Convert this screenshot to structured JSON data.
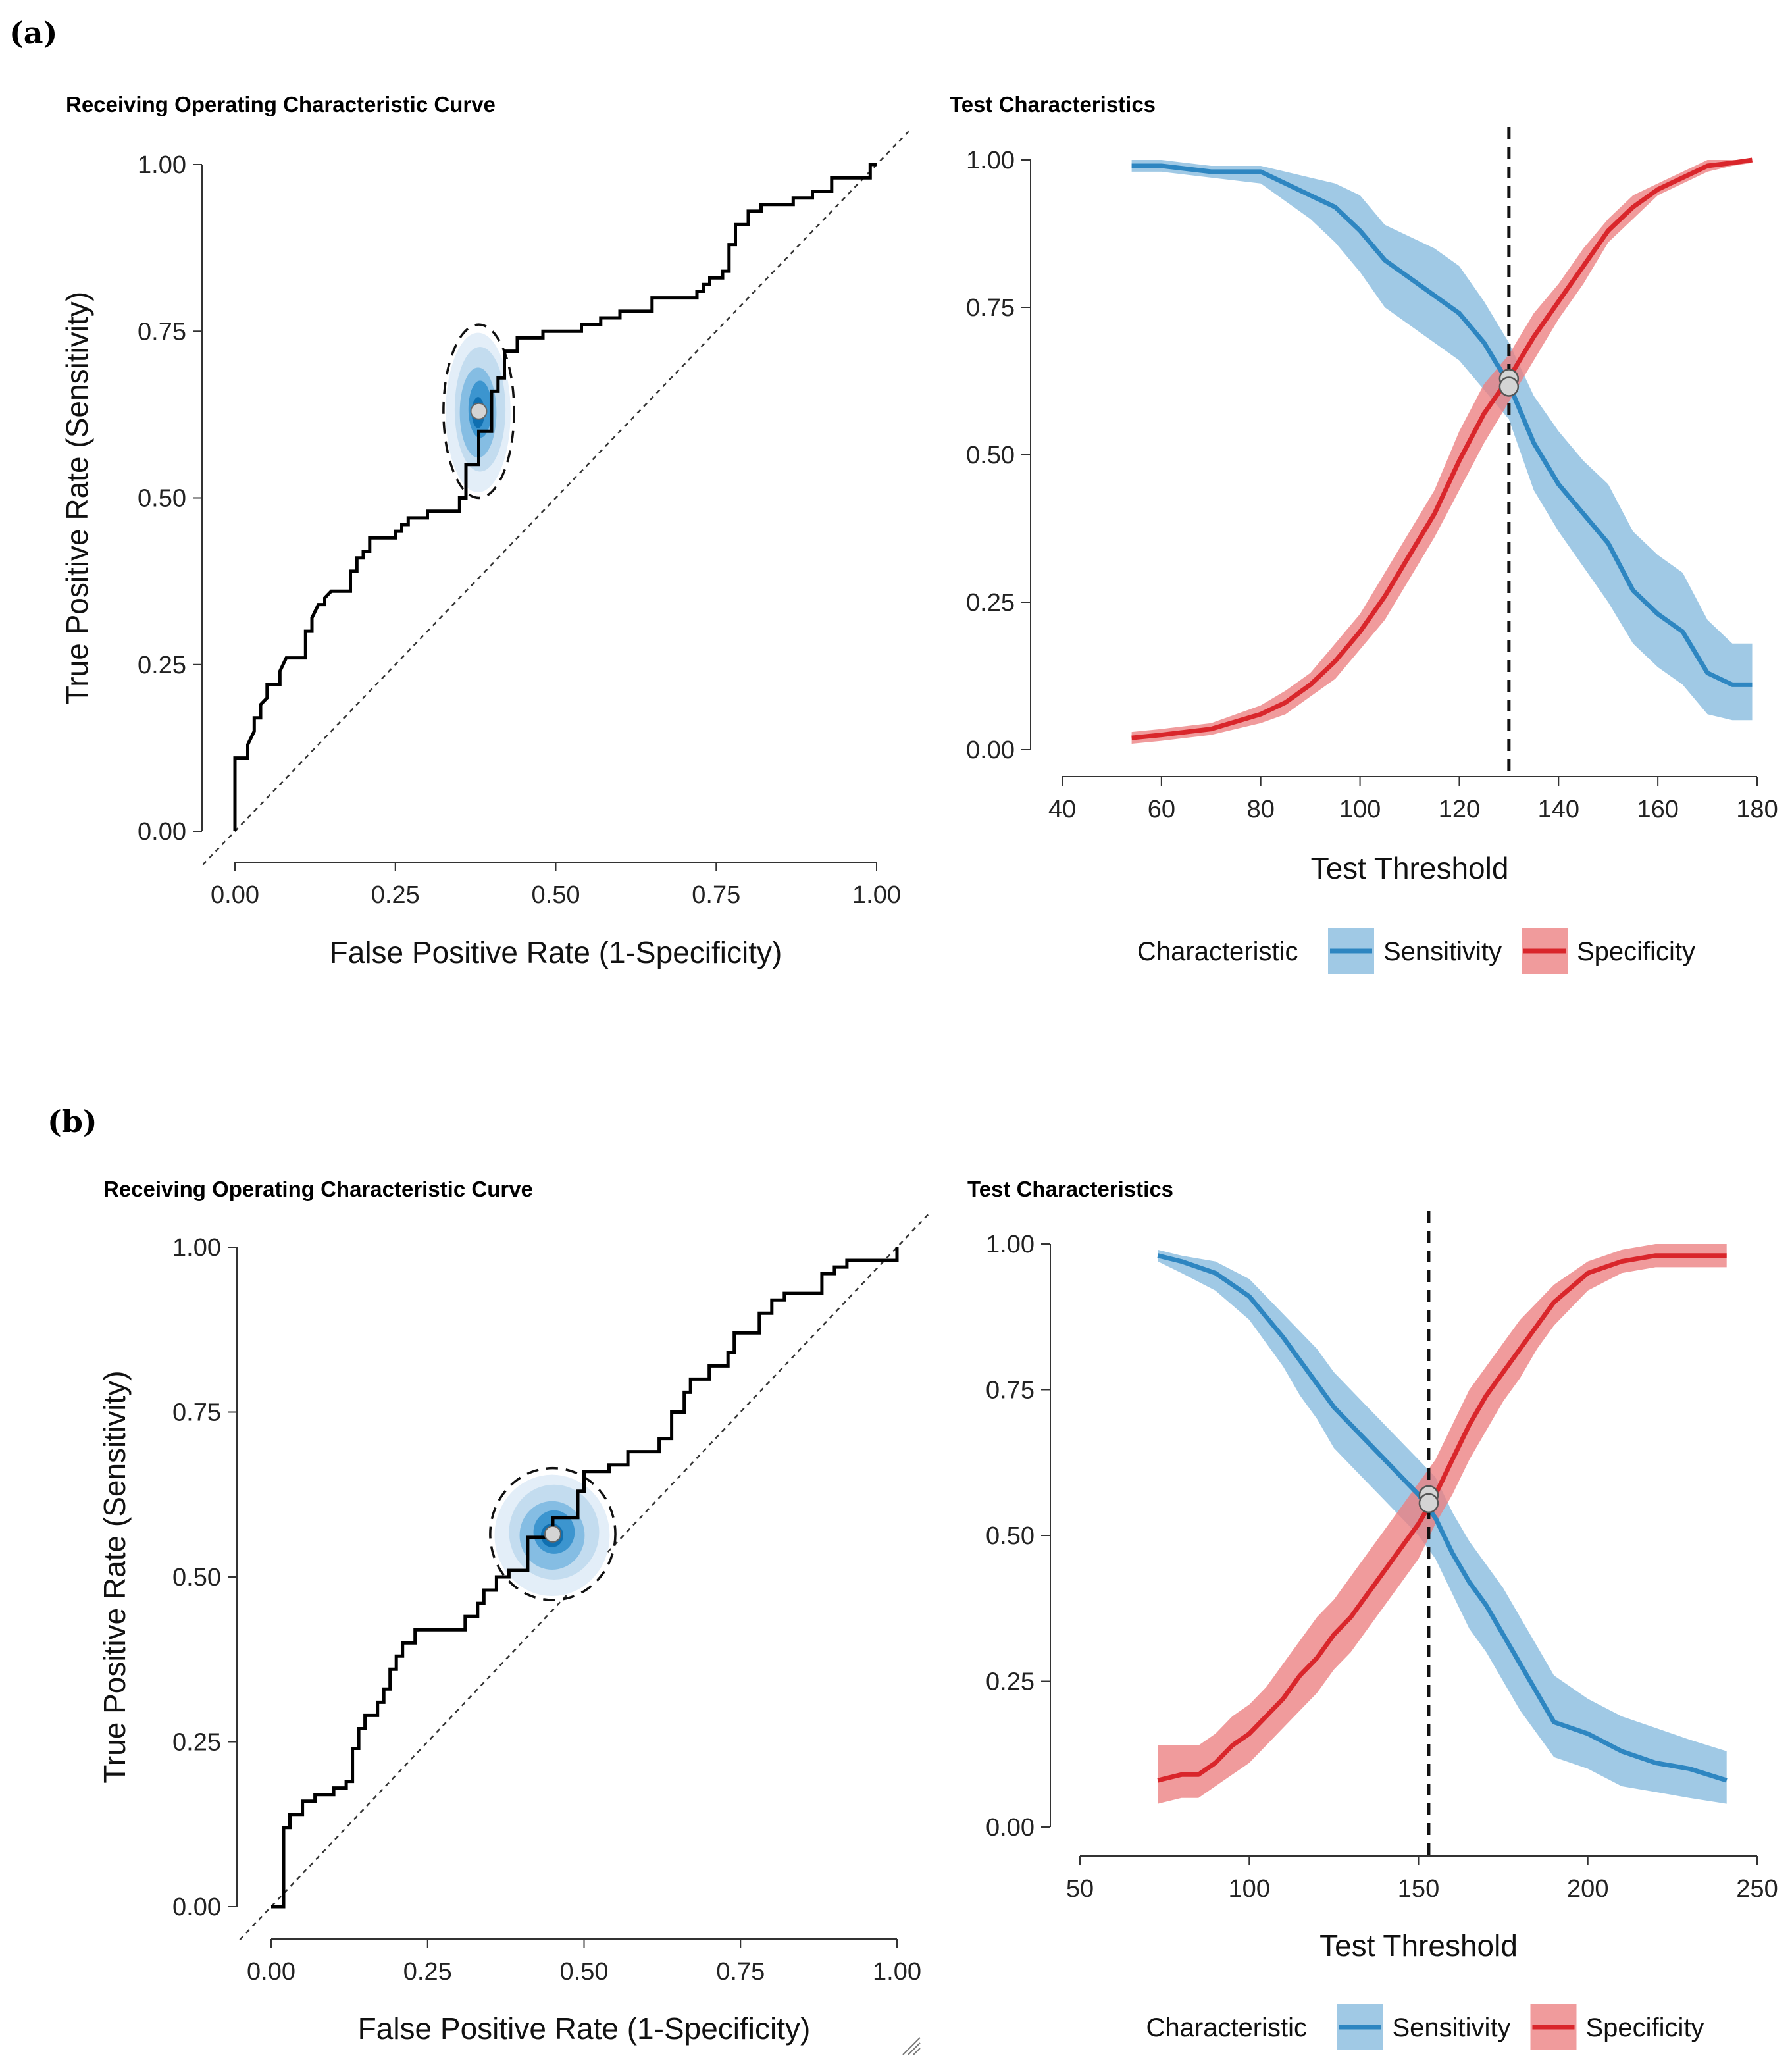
{
  "panels": [
    {
      "label": "(a)"
    },
    {
      "label": "(b)"
    }
  ],
  "colors": {
    "sensitivity_line": "#2e86c1",
    "sensitivity_band": "#8fc0e0",
    "specificity_line": "#d9262b",
    "specificity_band": "#ec7f80",
    "roc_line": "#000000",
    "point_fill": "#d4d4d4"
  },
  "chart_data": [
    {
      "type": "line",
      "panel": "(a)",
      "title": "Receiving Operating Characteristic Curve",
      "xlabel": "False Positive Rate (1-Specificity)",
      "ylabel": "True Positive Rate (Sensitivity)",
      "xlim": [
        0,
        1
      ],
      "ylim": [
        0,
        1
      ],
      "xticks": [
        "0.00",
        "0.25",
        "0.50",
        "0.75",
        "1.00"
      ],
      "yticks": [
        "0.00",
        "0.25",
        "0.50",
        "0.75",
        "1.00"
      ],
      "roc_points": [
        [
          0,
          0
        ],
        [
          0,
          0.11
        ],
        [
          0.02,
          0.11
        ],
        [
          0.02,
          0.13
        ],
        [
          0.03,
          0.15
        ],
        [
          0.03,
          0.17
        ],
        [
          0.04,
          0.17
        ],
        [
          0.04,
          0.19
        ],
        [
          0.05,
          0.2
        ],
        [
          0.05,
          0.22
        ],
        [
          0.07,
          0.22
        ],
        [
          0.07,
          0.24
        ],
        [
          0.08,
          0.26
        ],
        [
          0.11,
          0.26
        ],
        [
          0.11,
          0.3
        ],
        [
          0.12,
          0.3
        ],
        [
          0.12,
          0.32
        ],
        [
          0.13,
          0.34
        ],
        [
          0.14,
          0.34
        ],
        [
          0.14,
          0.35
        ],
        [
          0.15,
          0.36
        ],
        [
          0.18,
          0.36
        ],
        [
          0.18,
          0.39
        ],
        [
          0.19,
          0.39
        ],
        [
          0.19,
          0.41
        ],
        [
          0.2,
          0.41
        ],
        [
          0.2,
          0.42
        ],
        [
          0.21,
          0.42
        ],
        [
          0.21,
          0.44
        ],
        [
          0.25,
          0.44
        ],
        [
          0.25,
          0.45
        ],
        [
          0.26,
          0.45
        ],
        [
          0.26,
          0.46
        ],
        [
          0.27,
          0.46
        ],
        [
          0.27,
          0.47
        ],
        [
          0.3,
          0.47
        ],
        [
          0.3,
          0.48
        ],
        [
          0.35,
          0.48
        ],
        [
          0.35,
          0.5
        ],
        [
          0.36,
          0.5
        ],
        [
          0.36,
          0.55
        ],
        [
          0.38,
          0.55
        ],
        [
          0.38,
          0.6
        ],
        [
          0.4,
          0.6
        ],
        [
          0.4,
          0.66
        ],
        [
          0.41,
          0.66
        ],
        [
          0.41,
          0.68
        ],
        [
          0.42,
          0.68
        ],
        [
          0.42,
          0.72
        ],
        [
          0.44,
          0.72
        ],
        [
          0.44,
          0.74
        ],
        [
          0.48,
          0.74
        ],
        [
          0.48,
          0.75
        ],
        [
          0.54,
          0.75
        ],
        [
          0.54,
          0.76
        ],
        [
          0.57,
          0.76
        ],
        [
          0.57,
          0.77
        ],
        [
          0.6,
          0.77
        ],
        [
          0.6,
          0.78
        ],
        [
          0.65,
          0.78
        ],
        [
          0.65,
          0.8
        ],
        [
          0.72,
          0.8
        ],
        [
          0.72,
          0.81
        ],
        [
          0.73,
          0.81
        ],
        [
          0.73,
          0.82
        ],
        [
          0.74,
          0.82
        ],
        [
          0.74,
          0.83
        ],
        [
          0.76,
          0.83
        ],
        [
          0.76,
          0.84
        ],
        [
          0.77,
          0.84
        ],
        [
          0.77,
          0.88
        ],
        [
          0.78,
          0.88
        ],
        [
          0.78,
          0.91
        ],
        [
          0.8,
          0.91
        ],
        [
          0.8,
          0.93
        ],
        [
          0.82,
          0.93
        ],
        [
          0.82,
          0.94
        ],
        [
          0.87,
          0.94
        ],
        [
          0.87,
          0.95
        ],
        [
          0.9,
          0.95
        ],
        [
          0.9,
          0.96
        ],
        [
          0.93,
          0.96
        ],
        [
          0.93,
          0.98
        ],
        [
          0.99,
          0.98
        ],
        [
          0.99,
          1
        ],
        [
          1,
          1
        ]
      ],
      "optimal_point": {
        "fpr": 0.38,
        "tpr": 0.63
      },
      "posterior_region": {
        "x_halfwidth": 0.055,
        "y_halfwidth": 0.13
      }
    },
    {
      "type": "area",
      "panel": "(a)",
      "title": "Test Characteristics",
      "xlabel": "Test Threshold",
      "xlim": [
        40,
        180
      ],
      "ylim": [
        0,
        1
      ],
      "xticks": [
        "40",
        "60",
        "80",
        "100",
        "120",
        "140",
        "160",
        "180"
      ],
      "yticks": [
        "0.00",
        "0.25",
        "0.50",
        "0.75",
        "1.00"
      ],
      "threshold_line": 130,
      "crossing_point": {
        "threshold": 130,
        "value": 0.62
      },
      "series": [
        {
          "name": "Sensitivity",
          "x": [
            54,
            60,
            70,
            80,
            85,
            90,
            95,
            100,
            105,
            110,
            115,
            120,
            125,
            130,
            135,
            140,
            145,
            150,
            155,
            160,
            165,
            170,
            175,
            179
          ],
          "values": [
            0.99,
            0.99,
            0.98,
            0.98,
            0.96,
            0.94,
            0.92,
            0.88,
            0.83,
            0.8,
            0.77,
            0.74,
            0.69,
            0.62,
            0.52,
            0.45,
            0.4,
            0.35,
            0.27,
            0.23,
            0.2,
            0.13,
            0.11,
            0.11
          ],
          "lower": [
            0.98,
            0.98,
            0.97,
            0.96,
            0.93,
            0.9,
            0.86,
            0.81,
            0.75,
            0.72,
            0.69,
            0.66,
            0.61,
            0.56,
            0.44,
            0.37,
            0.31,
            0.25,
            0.18,
            0.14,
            0.11,
            0.06,
            0.05,
            0.05
          ],
          "upper": [
            1,
            1,
            0.99,
            0.99,
            0.98,
            0.97,
            0.96,
            0.94,
            0.89,
            0.87,
            0.85,
            0.82,
            0.76,
            0.69,
            0.6,
            0.54,
            0.49,
            0.45,
            0.37,
            0.33,
            0.3,
            0.22,
            0.18,
            0.18
          ]
        },
        {
          "name": "Specificity",
          "x": [
            54,
            60,
            70,
            80,
            85,
            90,
            95,
            100,
            105,
            110,
            115,
            120,
            125,
            130,
            135,
            140,
            145,
            150,
            155,
            160,
            165,
            170,
            175,
            179
          ],
          "values": [
            0.02,
            0.025,
            0.035,
            0.06,
            0.08,
            0.11,
            0.15,
            0.2,
            0.26,
            0.33,
            0.4,
            0.49,
            0.57,
            0.63,
            0.7,
            0.76,
            0.82,
            0.88,
            0.92,
            0.95,
            0.97,
            0.99,
            0.995,
            1
          ],
          "lower": [
            0.01,
            0.015,
            0.025,
            0.045,
            0.06,
            0.09,
            0.12,
            0.17,
            0.22,
            0.29,
            0.36,
            0.44,
            0.52,
            0.59,
            0.66,
            0.73,
            0.79,
            0.86,
            0.9,
            0.94,
            0.96,
            0.98,
            0.99,
            0.995
          ],
          "upper": [
            0.03,
            0.035,
            0.045,
            0.075,
            0.1,
            0.13,
            0.18,
            0.23,
            0.3,
            0.37,
            0.44,
            0.54,
            0.62,
            0.67,
            0.74,
            0.79,
            0.85,
            0.9,
            0.94,
            0.96,
            0.98,
            1,
            1,
            1
          ]
        }
      ],
      "legend": {
        "title": "Characteristic",
        "entries": [
          "Sensitivity",
          "Specificity"
        ],
        "position": "bottom"
      }
    },
    {
      "type": "line",
      "panel": "(b)",
      "title": "Receiving Operating Characteristic Curve",
      "xlabel": "False Positive Rate (1-Specificity)",
      "ylabel": "True Positive Rate (Sensitivity)",
      "xlim": [
        0,
        1
      ],
      "ylim": [
        0,
        1
      ],
      "xticks": [
        "0.00",
        "0.25",
        "0.50",
        "0.75",
        "1.00"
      ],
      "yticks": [
        "0.00",
        "0.25",
        "0.50",
        "0.75",
        "1.00"
      ],
      "roc_points": [
        [
          0,
          0
        ],
        [
          0.02,
          0
        ],
        [
          0.02,
          0.12
        ],
        [
          0.03,
          0.12
        ],
        [
          0.03,
          0.14
        ],
        [
          0.05,
          0.14
        ],
        [
          0.05,
          0.16
        ],
        [
          0.07,
          0.16
        ],
        [
          0.07,
          0.17
        ],
        [
          0.1,
          0.17
        ],
        [
          0.1,
          0.18
        ],
        [
          0.12,
          0.18
        ],
        [
          0.12,
          0.19
        ],
        [
          0.13,
          0.19
        ],
        [
          0.13,
          0.24
        ],
        [
          0.14,
          0.24
        ],
        [
          0.14,
          0.27
        ],
        [
          0.15,
          0.27
        ],
        [
          0.15,
          0.29
        ],
        [
          0.17,
          0.29
        ],
        [
          0.17,
          0.31
        ],
        [
          0.18,
          0.31
        ],
        [
          0.18,
          0.33
        ],
        [
          0.19,
          0.33
        ],
        [
          0.19,
          0.36
        ],
        [
          0.2,
          0.36
        ],
        [
          0.2,
          0.38
        ],
        [
          0.21,
          0.38
        ],
        [
          0.21,
          0.4
        ],
        [
          0.23,
          0.4
        ],
        [
          0.23,
          0.42
        ],
        [
          0.31,
          0.42
        ],
        [
          0.31,
          0.44
        ],
        [
          0.33,
          0.44
        ],
        [
          0.33,
          0.46
        ],
        [
          0.34,
          0.46
        ],
        [
          0.34,
          0.48
        ],
        [
          0.36,
          0.48
        ],
        [
          0.36,
          0.5
        ],
        [
          0.38,
          0.5
        ],
        [
          0.38,
          0.51
        ],
        [
          0.41,
          0.51
        ],
        [
          0.41,
          0.56
        ],
        [
          0.45,
          0.56
        ],
        [
          0.45,
          0.59
        ],
        [
          0.49,
          0.59
        ],
        [
          0.49,
          0.63
        ],
        [
          0.5,
          0.63
        ],
        [
          0.5,
          0.66
        ],
        [
          0.54,
          0.66
        ],
        [
          0.54,
          0.67
        ],
        [
          0.57,
          0.67
        ],
        [
          0.57,
          0.69
        ],
        [
          0.62,
          0.69
        ],
        [
          0.62,
          0.71
        ],
        [
          0.64,
          0.71
        ],
        [
          0.64,
          0.75
        ],
        [
          0.66,
          0.75
        ],
        [
          0.66,
          0.78
        ],
        [
          0.67,
          0.78
        ],
        [
          0.67,
          0.8
        ],
        [
          0.7,
          0.8
        ],
        [
          0.7,
          0.82
        ],
        [
          0.73,
          0.82
        ],
        [
          0.73,
          0.84
        ],
        [
          0.74,
          0.84
        ],
        [
          0.74,
          0.87
        ],
        [
          0.78,
          0.87
        ],
        [
          0.78,
          0.9
        ],
        [
          0.8,
          0.9
        ],
        [
          0.8,
          0.92
        ],
        [
          0.82,
          0.92
        ],
        [
          0.82,
          0.93
        ],
        [
          0.88,
          0.93
        ],
        [
          0.88,
          0.96
        ],
        [
          0.9,
          0.96
        ],
        [
          0.9,
          0.97
        ],
        [
          0.92,
          0.97
        ],
        [
          0.92,
          0.98
        ],
        [
          1,
          0.98
        ],
        [
          1,
          1
        ]
      ],
      "optimal_point": {
        "fpr": 0.45,
        "tpr": 0.565
      },
      "posterior_region": {
        "x_halfwidth": 0.1,
        "y_halfwidth": 0.1
      }
    },
    {
      "type": "area",
      "panel": "(b)",
      "title": "Test Characteristics",
      "xlabel": "Test Threshold",
      "xlim": [
        50,
        250
      ],
      "ylim": [
        0,
        1
      ],
      "xticks": [
        "50",
        "100",
        "150",
        "200",
        "250"
      ],
      "yticks": [
        "0.00",
        "0.25",
        "0.50",
        "0.75",
        "1.00"
      ],
      "threshold_line": 153,
      "crossing_point": {
        "threshold": 153,
        "value": 0.56
      },
      "series": [
        {
          "name": "Sensitivity",
          "x": [
            73,
            80,
            90,
            100,
            110,
            115,
            120,
            125,
            130,
            135,
            140,
            145,
            150,
            155,
            160,
            165,
            170,
            175,
            180,
            185,
            190,
            200,
            210,
            220,
            230,
            241
          ],
          "values": [
            0.98,
            0.97,
            0.95,
            0.91,
            0.84,
            0.8,
            0.76,
            0.72,
            0.69,
            0.66,
            0.63,
            0.6,
            0.57,
            0.53,
            0.47,
            0.42,
            0.38,
            0.33,
            0.28,
            0.23,
            0.18,
            0.16,
            0.13,
            0.11,
            0.1,
            0.08
          ],
          "lower": [
            0.97,
            0.95,
            0.92,
            0.87,
            0.79,
            0.74,
            0.7,
            0.65,
            0.62,
            0.59,
            0.56,
            0.53,
            0.5,
            0.46,
            0.4,
            0.34,
            0.3,
            0.25,
            0.2,
            0.16,
            0.12,
            0.1,
            0.07,
            0.06,
            0.05,
            0.04
          ],
          "upper": [
            0.99,
            0.98,
            0.97,
            0.94,
            0.88,
            0.85,
            0.82,
            0.78,
            0.75,
            0.72,
            0.69,
            0.66,
            0.63,
            0.6,
            0.54,
            0.49,
            0.45,
            0.41,
            0.36,
            0.31,
            0.26,
            0.22,
            0.19,
            0.17,
            0.15,
            0.13
          ]
        },
        {
          "name": "Specificity",
          "x": [
            73,
            80,
            85,
            90,
            95,
            100,
            105,
            110,
            115,
            120,
            125,
            130,
            135,
            140,
            145,
            150,
            155,
            160,
            165,
            170,
            175,
            180,
            185,
            190,
            200,
            210,
            220,
            230,
            241
          ],
          "values": [
            0.08,
            0.09,
            0.09,
            0.11,
            0.14,
            0.16,
            0.19,
            0.22,
            0.26,
            0.29,
            0.33,
            0.36,
            0.4,
            0.44,
            0.48,
            0.52,
            0.57,
            0.63,
            0.69,
            0.74,
            0.78,
            0.82,
            0.86,
            0.9,
            0.95,
            0.97,
            0.98,
            0.98,
            0.98
          ],
          "lower": [
            0.04,
            0.05,
            0.05,
            0.07,
            0.09,
            0.11,
            0.14,
            0.17,
            0.2,
            0.23,
            0.27,
            0.3,
            0.34,
            0.38,
            0.42,
            0.46,
            0.52,
            0.57,
            0.63,
            0.68,
            0.73,
            0.77,
            0.82,
            0.86,
            0.92,
            0.95,
            0.96,
            0.96,
            0.96
          ],
          "upper": [
            0.14,
            0.14,
            0.14,
            0.16,
            0.19,
            0.21,
            0.24,
            0.28,
            0.32,
            0.36,
            0.39,
            0.43,
            0.47,
            0.51,
            0.55,
            0.59,
            0.63,
            0.69,
            0.75,
            0.79,
            0.83,
            0.87,
            0.9,
            0.93,
            0.97,
            0.99,
            1,
            1,
            1
          ]
        }
      ],
      "legend": {
        "title": "Characteristic",
        "entries": [
          "Sensitivity",
          "Specificity"
        ],
        "position": "bottom"
      }
    }
  ]
}
